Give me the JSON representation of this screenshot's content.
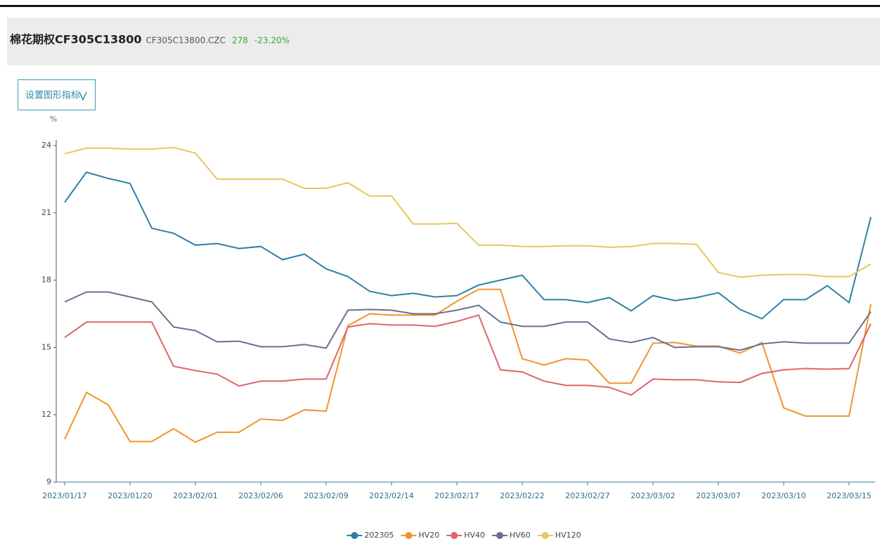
{
  "header": {
    "title": "棉花期权CF305C13800",
    "code": "CF305C13800.CZC",
    "price": "278",
    "change": "-23.20%"
  },
  "button": {
    "label": "设置图形指标"
  },
  "chart_data": {
    "type": "line",
    "y_unit": "%",
    "categories": [
      "2023/01/17",
      null,
      null,
      "2023/01/20",
      null,
      null,
      "2023/02/01",
      null,
      null,
      "2023/02/06",
      null,
      null,
      "2023/02/09",
      null,
      null,
      "2023/02/14",
      null,
      null,
      "2023/02/17",
      null,
      null,
      "2023/02/22",
      null,
      null,
      "2023/02/27",
      null,
      null,
      "2023/03/02",
      null,
      null,
      "2023/03/07",
      null,
      null,
      "2023/03/10",
      null,
      null,
      "2023/03/15",
      null
    ],
    "ylim": [
      9,
      24
    ],
    "yticks": [
      9,
      12,
      15,
      18,
      21,
      24
    ],
    "grid": false,
    "legend": "bottom",
    "series": [
      {
        "name": "202305",
        "color": "#2f7fa7",
        "values": [
          21.47,
          22.81,
          22.53,
          22.31,
          20.31,
          20.09,
          19.56,
          19.63,
          19.41,
          19.5,
          18.91,
          19.16,
          18.5,
          18.16,
          17.5,
          17.31,
          17.41,
          17.25,
          17.31,
          17.78,
          18.0,
          18.22,
          17.13,
          17.13,
          17.0,
          17.22,
          16.63,
          17.31,
          17.09,
          17.22,
          17.44,
          16.69,
          16.28,
          17.13,
          17.13,
          17.75,
          17.0,
          20.81
        ]
      },
      {
        "name": "HV20",
        "color": "#f0952b",
        "values": [
          10.91,
          13.0,
          12.44,
          10.81,
          10.81,
          11.38,
          10.78,
          11.22,
          11.22,
          11.81,
          11.75,
          12.22,
          12.16,
          15.97,
          16.5,
          16.44,
          16.44,
          16.44,
          17.06,
          17.59,
          17.59,
          14.5,
          14.22,
          14.5,
          14.44,
          13.41,
          13.41,
          15.19,
          15.22,
          15.06,
          15.06,
          14.75,
          15.22,
          12.31,
          11.94,
          11.94,
          11.94,
          16.94
        ]
      },
      {
        "name": "HV40",
        "color": "#df6469",
        "values": [
          15.44,
          16.13,
          16.13,
          16.13,
          16.13,
          14.16,
          13.97,
          13.81,
          13.28,
          13.5,
          13.5,
          13.59,
          13.59,
          15.91,
          16.06,
          16.0,
          16.0,
          15.94,
          16.16,
          16.44,
          14.0,
          13.91,
          13.5,
          13.31,
          13.31,
          13.22,
          12.88,
          13.59,
          13.56,
          13.56,
          13.47,
          13.44,
          13.84,
          14.0,
          14.06,
          14.03,
          14.06,
          16.06
        ]
      },
      {
        "name": "HV60",
        "color": "#6a6f8f",
        "values": [
          17.03,
          17.47,
          17.47,
          17.25,
          17.03,
          15.91,
          15.75,
          15.25,
          15.28,
          15.03,
          15.03,
          15.13,
          14.97,
          16.66,
          16.69,
          16.66,
          16.5,
          16.5,
          16.66,
          16.88,
          16.13,
          15.94,
          15.94,
          16.13,
          16.13,
          15.38,
          15.22,
          15.44,
          15.0,
          15.03,
          15.03,
          14.88,
          15.16,
          15.25,
          15.19,
          15.19,
          15.19,
          16.59
        ]
      },
      {
        "name": "HV120",
        "color": "#e6c95b",
        "values": [
          23.63,
          23.88,
          23.88,
          23.84,
          23.84,
          23.91,
          23.66,
          22.5,
          22.5,
          22.5,
          22.5,
          22.09,
          22.09,
          22.34,
          21.75,
          21.75,
          20.5,
          20.5,
          20.53,
          19.56,
          19.56,
          19.5,
          19.5,
          19.53,
          19.53,
          19.47,
          19.5,
          19.63,
          19.63,
          19.59,
          18.34,
          18.13,
          18.22,
          18.25,
          18.25,
          18.16,
          18.16,
          18.72
        ]
      }
    ]
  }
}
